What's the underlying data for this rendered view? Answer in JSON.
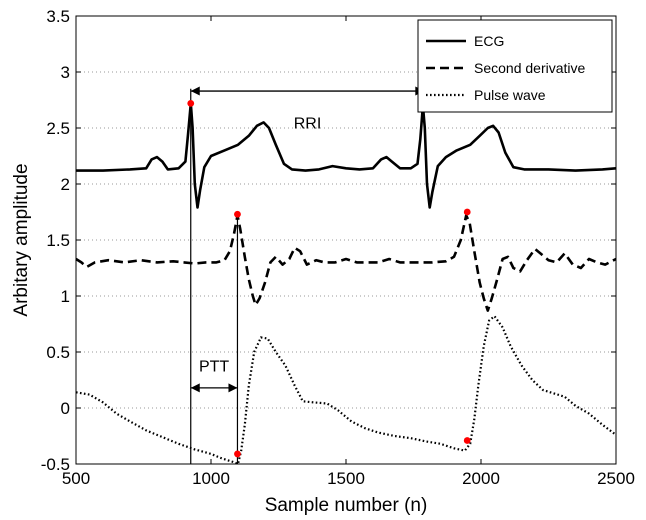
{
  "chart_data": {
    "type": "line",
    "title": "",
    "xlabel": "Sample number (n)",
    "ylabel": "Arbitary amplitude",
    "xlim": [
      500,
      2500
    ],
    "ylim": [
      -0.5,
      3.5
    ],
    "xticks": [
      500,
      1000,
      1500,
      2000,
      2500
    ],
    "yticks": [
      -0.5,
      0,
      0.5,
      1,
      1.5,
      2,
      2.5,
      3,
      3.5
    ],
    "x_tick_labels": [
      "500",
      "1000",
      "1500",
      "2000",
      "2500"
    ],
    "y_tick_labels": [
      "-0.5",
      "0",
      "0.5",
      "1",
      "1.5",
      "2",
      "2.5",
      "3",
      "3.5"
    ],
    "grid": "dotted horizontal",
    "legend_position": "top-right",
    "series": [
      {
        "name": "ECG",
        "style": "solid",
        "color": "#000000",
        "points": [
          [
            500,
            2.12
          ],
          [
            600,
            2.12
          ],
          [
            700,
            2.13
          ],
          [
            760,
            2.14
          ],
          [
            780,
            2.22
          ],
          [
            800,
            2.24
          ],
          [
            820,
            2.2
          ],
          [
            840,
            2.13
          ],
          [
            880,
            2.14
          ],
          [
            905,
            2.2
          ],
          [
            915,
            2.45
          ],
          [
            925,
            2.72
          ],
          [
            932,
            2.5
          ],
          [
            940,
            2.0
          ],
          [
            950,
            1.79
          ],
          [
            960,
            1.95
          ],
          [
            975,
            2.15
          ],
          [
            1000,
            2.25
          ],
          [
            1050,
            2.3
          ],
          [
            1100,
            2.35
          ],
          [
            1140,
            2.43
          ],
          [
            1170,
            2.52
          ],
          [
            1195,
            2.55
          ],
          [
            1215,
            2.5
          ],
          [
            1240,
            2.35
          ],
          [
            1270,
            2.18
          ],
          [
            1300,
            2.13
          ],
          [
            1350,
            2.12
          ],
          [
            1400,
            2.13
          ],
          [
            1450,
            2.16
          ],
          [
            1500,
            2.14
          ],
          [
            1550,
            2.13
          ],
          [
            1600,
            2.14
          ],
          [
            1630,
            2.22
          ],
          [
            1650,
            2.24
          ],
          [
            1670,
            2.2
          ],
          [
            1700,
            2.14
          ],
          [
            1740,
            2.14
          ],
          [
            1765,
            2.18
          ],
          [
            1775,
            2.4
          ],
          [
            1785,
            2.7
          ],
          [
            1792,
            2.5
          ],
          [
            1800,
            2.0
          ],
          [
            1810,
            1.79
          ],
          [
            1820,
            1.93
          ],
          [
            1840,
            2.16
          ],
          [
            1870,
            2.24
          ],
          [
            1910,
            2.3
          ],
          [
            1960,
            2.35
          ],
          [
            1995,
            2.43
          ],
          [
            2025,
            2.5
          ],
          [
            2045,
            2.52
          ],
          [
            2065,
            2.46
          ],
          [
            2090,
            2.28
          ],
          [
            2120,
            2.15
          ],
          [
            2160,
            2.13
          ],
          [
            2250,
            2.13
          ],
          [
            2350,
            2.12
          ],
          [
            2450,
            2.13
          ],
          [
            2500,
            2.14
          ]
        ]
      },
      {
        "name": "Second derivative",
        "style": "dashed",
        "color": "#000000",
        "points": [
          [
            500,
            1.33
          ],
          [
            520,
            1.3
          ],
          [
            540,
            1.26
          ],
          [
            570,
            1.3
          ],
          [
            620,
            1.32
          ],
          [
            680,
            1.3
          ],
          [
            740,
            1.32
          ],
          [
            800,
            1.3
          ],
          [
            860,
            1.31
          ],
          [
            900,
            1.3
          ],
          [
            940,
            1.29
          ],
          [
            980,
            1.3
          ],
          [
            1020,
            1.3
          ],
          [
            1050,
            1.32
          ],
          [
            1070,
            1.4
          ],
          [
            1085,
            1.55
          ],
          [
            1098,
            1.72
          ],
          [
            1108,
            1.6
          ],
          [
            1125,
            1.35
          ],
          [
            1140,
            1.15
          ],
          [
            1155,
            1.0
          ],
          [
            1165,
            0.92
          ],
          [
            1180,
            0.98
          ],
          [
            1200,
            1.12
          ],
          [
            1220,
            1.3
          ],
          [
            1240,
            1.35
          ],
          [
            1265,
            1.28
          ],
          [
            1290,
            1.33
          ],
          [
            1310,
            1.43
          ],
          [
            1330,
            1.4
          ],
          [
            1355,
            1.28
          ],
          [
            1390,
            1.32
          ],
          [
            1420,
            1.3
          ],
          [
            1460,
            1.3
          ],
          [
            1500,
            1.33
          ],
          [
            1540,
            1.3
          ],
          [
            1580,
            1.3
          ],
          [
            1620,
            1.3
          ],
          [
            1660,
            1.33
          ],
          [
            1700,
            1.3
          ],
          [
            1760,
            1.3
          ],
          [
            1820,
            1.3
          ],
          [
            1870,
            1.31
          ],
          [
            1900,
            1.35
          ],
          [
            1925,
            1.5
          ],
          [
            1945,
            1.72
          ],
          [
            1958,
            1.65
          ],
          [
            1975,
            1.4
          ],
          [
            1995,
            1.12
          ],
          [
            2010,
            0.98
          ],
          [
            2025,
            0.87
          ],
          [
            2040,
            0.98
          ],
          [
            2060,
            1.15
          ],
          [
            2080,
            1.33
          ],
          [
            2100,
            1.35
          ],
          [
            2120,
            1.25
          ],
          [
            2145,
            1.22
          ],
          [
            2170,
            1.32
          ],
          [
            2200,
            1.42
          ],
          [
            2220,
            1.38
          ],
          [
            2250,
            1.32
          ],
          [
            2280,
            1.3
          ],
          [
            2310,
            1.38
          ],
          [
            2340,
            1.28
          ],
          [
            2370,
            1.25
          ],
          [
            2400,
            1.33
          ],
          [
            2430,
            1.3
          ],
          [
            2460,
            1.28
          ],
          [
            2500,
            1.33
          ]
        ]
      },
      {
        "name": "Pulse wave",
        "style": "dotted",
        "color": "#000000",
        "points": [
          [
            500,
            0.14
          ],
          [
            550,
            0.12
          ],
          [
            600,
            0.05
          ],
          [
            650,
            -0.05
          ],
          [
            700,
            -0.12
          ],
          [
            760,
            -0.2
          ],
          [
            820,
            -0.26
          ],
          [
            880,
            -0.32
          ],
          [
            940,
            -0.37
          ],
          [
            1000,
            -0.41
          ],
          [
            1040,
            -0.45
          ],
          [
            1080,
            -0.48
          ],
          [
            1100,
            -0.5
          ],
          [
            1112,
            -0.38
          ],
          [
            1125,
            -0.15
          ],
          [
            1140,
            0.2
          ],
          [
            1160,
            0.5
          ],
          [
            1185,
            0.63
          ],
          [
            1210,
            0.62
          ],
          [
            1240,
            0.5
          ],
          [
            1275,
            0.38
          ],
          [
            1310,
            0.2
          ],
          [
            1340,
            0.06
          ],
          [
            1380,
            0.05
          ],
          [
            1430,
            0.04
          ],
          [
            1470,
            -0.02
          ],
          [
            1520,
            -0.12
          ],
          [
            1570,
            -0.18
          ],
          [
            1620,
            -0.22
          ],
          [
            1680,
            -0.25
          ],
          [
            1740,
            -0.27
          ],
          [
            1800,
            -0.3
          ],
          [
            1850,
            -0.32
          ],
          [
            1900,
            -0.36
          ],
          [
            1940,
            -0.38
          ],
          [
            1960,
            -0.32
          ],
          [
            1975,
            -0.1
          ],
          [
            1990,
            0.2
          ],
          [
            2010,
            0.55
          ],
          [
            2030,
            0.78
          ],
          [
            2050,
            0.82
          ],
          [
            2080,
            0.72
          ],
          [
            2110,
            0.55
          ],
          [
            2150,
            0.38
          ],
          [
            2190,
            0.25
          ],
          [
            2230,
            0.16
          ],
          [
            2270,
            0.13
          ],
          [
            2310,
            0.1
          ],
          [
            2350,
            0.02
          ],
          [
            2400,
            -0.05
          ],
          [
            2450,
            -0.15
          ],
          [
            2500,
            -0.24
          ]
        ]
      }
    ],
    "markers": [
      {
        "x": 925,
        "y": 2.72,
        "color": "#ff0000"
      },
      {
        "x": 1790,
        "y": 2.69,
        "color": "#ff0000"
      },
      {
        "x": 1098,
        "y": 1.73,
        "color": "#ff0000"
      },
      {
        "x": 1949,
        "y": 1.75,
        "color": "#ff0000"
      },
      {
        "x": 1098,
        "y": -0.41,
        "color": "#ff0000"
      },
      {
        "x": 1949,
        "y": -0.29,
        "color": "#ff0000"
      }
    ],
    "vertical_lines": [
      {
        "x": 925,
        "y_from": -0.5,
        "y_to": 2.85
      },
      {
        "x": 1098,
        "y_from": -0.5,
        "y_to": 1.73
      },
      {
        "x": 1790,
        "y_from": 2.69,
        "y_to": 2.85
      }
    ],
    "annotations": [
      {
        "text": "RRI",
        "x_from": 925,
        "x_to": 1790,
        "y": 2.83,
        "label_y": 2.55
      },
      {
        "text": "PTT",
        "x_from": 925,
        "x_to": 1098,
        "y": 0.18,
        "label_y": 0.38
      }
    ]
  }
}
